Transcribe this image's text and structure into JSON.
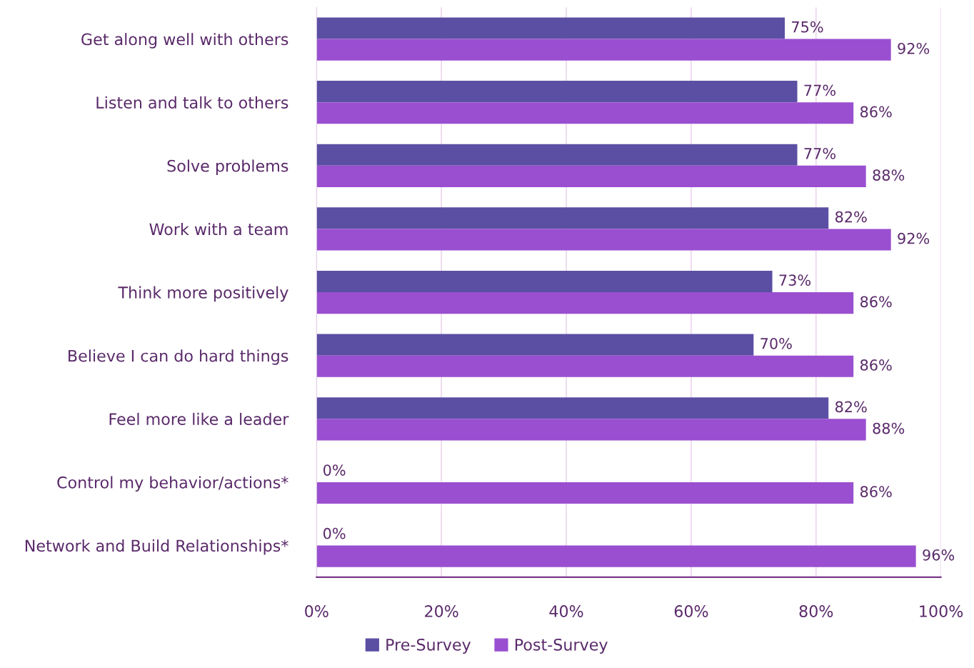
{
  "chart_data": {
    "type": "bar",
    "orientation": "horizontal",
    "categories": [
      "Get along well with others",
      "Listen and talk to others",
      "Solve problems",
      "Work with a team",
      "Think more positively",
      "Believe I can do hard things",
      "Feel more like a leader",
      "Control my behavior/actions*",
      "Network and Build Relationships*"
    ],
    "series": [
      {
        "name": "Pre-Survey",
        "color": "#5b4fa3",
        "values": [
          75,
          77,
          77,
          82,
          73,
          70,
          82,
          0,
          0
        ],
        "value_labels": [
          "75%",
          "77%",
          "77%",
          "82%",
          "73%",
          "70%",
          "82%",
          "0%",
          "0%"
        ]
      },
      {
        "name": "Post-Survey",
        "color": "#9a4fd0",
        "values": [
          92,
          86,
          88,
          92,
          86,
          86,
          88,
          86,
          96
        ],
        "value_labels": [
          "92%",
          "86%",
          "88%",
          "92%",
          "86%",
          "86%",
          "88%",
          "86%",
          "96%"
        ]
      }
    ],
    "xlim": [
      0,
      100
    ],
    "xticks": [
      {
        "value": 0,
        "label": "0%"
      },
      {
        "value": 20,
        "label": "20%"
      },
      {
        "value": 40,
        "label": "40%"
      },
      {
        "value": 60,
        "label": "60%"
      },
      {
        "value": 80,
        "label": "80%"
      },
      {
        "value": 100,
        "label": "100%"
      }
    ],
    "grid": "x",
    "legend": "bottom"
  }
}
